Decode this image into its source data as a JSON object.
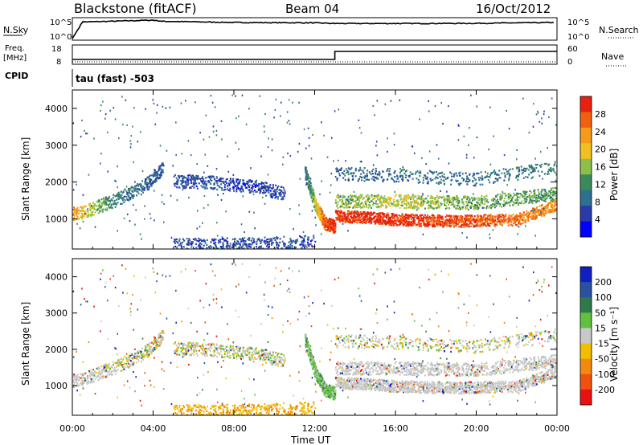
{
  "header": {
    "station": "Blackstone (fitACF)",
    "beam": "Beam 04",
    "date": "16/Oct/2012"
  },
  "strip_labels": {
    "nsky": "N.Sky",
    "nsky_top": "10^5",
    "nsky_bot": "10^0",
    "nsearch": "N.Search",
    "nsearch_top": "10^5",
    "nsearch_bot": "10^0",
    "freq_line1": "Freq.",
    "freq_line2": "[MHz]",
    "freq_top": "18",
    "freq_bot": "8",
    "nave": "Nave",
    "nave_top": "60",
    "nave_bot": "0",
    "cpid": "CPID",
    "cpid_text": "tau (fast) -503"
  },
  "power_panel": {
    "ylabel": "Slant Range [km]",
    "colorbar_label": "Power [dB]"
  },
  "velocity_panel": {
    "ylabel": "Slant Range [km]",
    "colorbar_label": "Velocity [m s⁻¹]"
  },
  "xaxis_title": "Time UT",
  "chart_data": [
    {
      "type": "line",
      "panel": "N.Sky / N.Search",
      "x_range": [
        "00:00",
        "24:00"
      ],
      "series": [
        {
          "name": "N.Sky",
          "x": [
            "00:00",
            "00:30",
            "04:00",
            "04:30",
            "08:00",
            "12:00",
            "13:00",
            "16:00",
            "20:00",
            "23:50"
          ],
          "values": [
            1,
            20000,
            60000,
            30000,
            15000,
            12000,
            8000,
            8000,
            9000,
            15000
          ]
        }
      ],
      "y_scale": "log",
      "ylim": [
        1,
        100000
      ]
    },
    {
      "type": "line",
      "panel": "Freq. / Nave",
      "x_range": [
        "00:00",
        "24:00"
      ],
      "series": [
        {
          "name": "Freq.",
          "x": [
            "00:00",
            "13:00",
            "13:00",
            "24:00"
          ],
          "values": [
            10,
            10,
            15,
            15
          ]
        },
        {
          "name": "Nave",
          "x": [
            "00:00",
            "24:00"
          ],
          "values": [
            1,
            1
          ]
        }
      ],
      "ylim_freq": [
        8,
        18
      ],
      "ylim_nave": [
        0,
        60
      ]
    },
    {
      "type": "heatmap",
      "title": "Power",
      "xlabel": "Time UT",
      "ylabel": "Slant Range [km]",
      "x_range_hours": [
        0,
        24
      ],
      "ylim": [
        180,
        4500
      ],
      "xticks": [
        "00:00",
        "04:00",
        "08:00",
        "12:00",
        "16:00",
        "20:00",
        "00:00"
      ],
      "yticks": [
        1000,
        2000,
        3000,
        4000
      ],
      "colorbar": {
        "label": "Power [dB]",
        "ticks": [
          4,
          8,
          12,
          16,
          20,
          24,
          28
        ],
        "range": [
          0,
          30
        ]
      },
      "scatter_bands": [
        {
          "time": [
            0.0,
            0.5,
            2.0,
            3.5,
            4.5
          ],
          "range": [
            1150,
            1200,
            1500,
            1900,
            2400
          ],
          "power_db": [
            22,
            18,
            10,
            8,
            6
          ]
        },
        {
          "time": [
            5.0,
            7.0,
            9.0,
            10.5
          ],
          "range": [
            2050,
            2000,
            1900,
            1700
          ],
          "power_db": [
            6,
            6,
            5,
            6
          ]
        },
        {
          "time": [
            11.5,
            12.0,
            12.5,
            13.0
          ],
          "range": [
            2300,
            1400,
            900,
            800
          ],
          "power_db": [
            8,
            16,
            26,
            28
          ]
        },
        {
          "time": [
            13.0,
            16.0,
            19.0,
            22.0,
            24.0
          ],
          "range": [
            1100,
            1000,
            950,
            1000,
            1400
          ],
          "power_db": [
            27,
            28,
            26,
            24,
            22
          ]
        },
        {
          "time": [
            13.0,
            16.0,
            20.0,
            24.0
          ],
          "range": [
            1500,
            1500,
            1450,
            1700
          ],
          "power_db": [
            14,
            16,
            14,
            12
          ]
        },
        {
          "time": [
            13.0,
            16.0,
            20.0,
            24.0
          ],
          "range": [
            2250,
            2200,
            2100,
            2400
          ],
          "power_db": [
            8,
            8,
            8,
            10
          ]
        },
        {
          "time": [
            5.0,
            8.0,
            10.0,
            12.0
          ],
          "range": [
            300,
            320,
            350,
            400
          ],
          "power_db": [
            6,
            6,
            6,
            6
          ]
        }
      ]
    },
    {
      "type": "heatmap",
      "title": "Velocity",
      "xlabel": "Time UT",
      "ylabel": "Slant Range [km]",
      "x_range_hours": [
        0,
        24
      ],
      "ylim": [
        180,
        4500
      ],
      "xticks": [
        "00:00",
        "04:00",
        "08:00",
        "12:00",
        "16:00",
        "20:00",
        "00:00"
      ],
      "yticks": [
        1000,
        2000,
        3000,
        4000
      ],
      "colorbar": {
        "label": "Velocity [m s⁻¹]",
        "ticks": [
          200,
          100,
          50,
          15,
          -15,
          -50,
          -100,
          -200
        ]
      },
      "ground_scatter_color": "#c8c8c8"
    }
  ],
  "colors": {
    "power_scale": [
      "#0000ff",
      "#2a3aa8",
      "#2f6f8f",
      "#3a8a5a",
      "#8cc04a",
      "#f0c020",
      "#f59a1a",
      "#f06010",
      "#e82010"
    ],
    "velocity_scale": [
      "#1020c0",
      "#2a50a0",
      "#2f7a4a",
      "#60c040",
      "#c8c8c8",
      "#f0c000",
      "#f08a10",
      "#f05010",
      "#e81010"
    ]
  }
}
